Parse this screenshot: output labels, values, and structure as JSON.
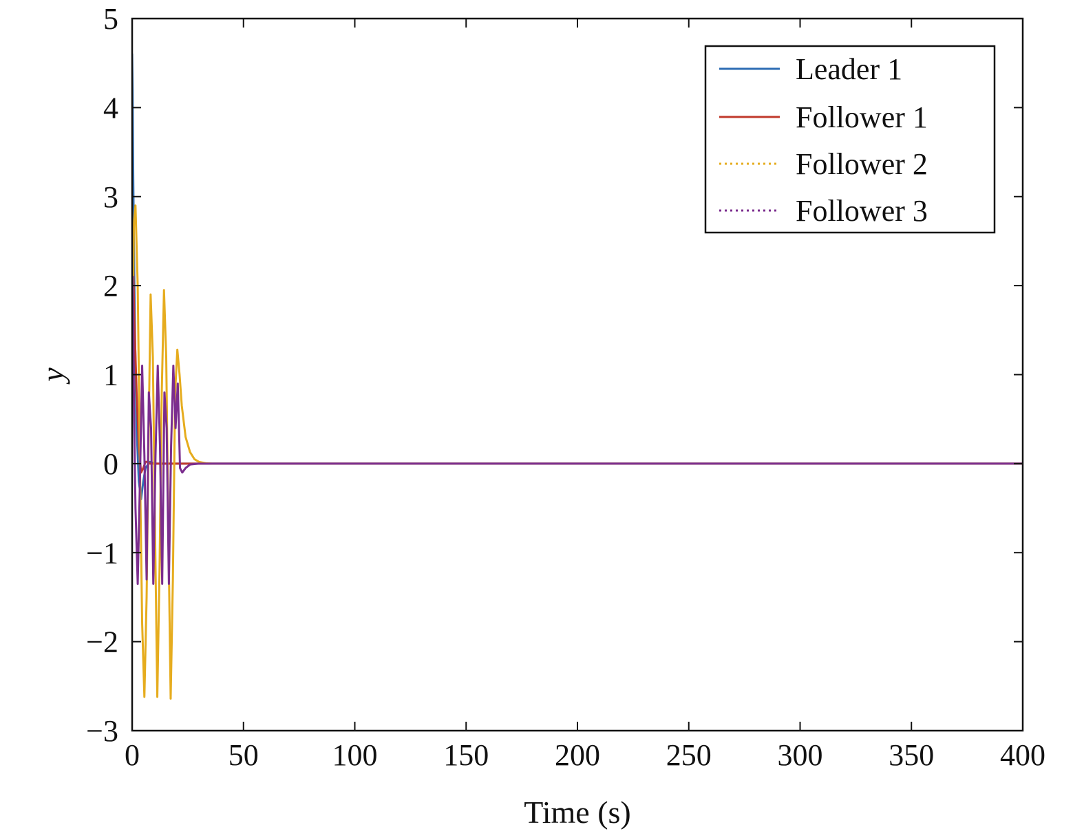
{
  "chart_data": {
    "type": "line",
    "title": "",
    "xlabel": "Time (s)",
    "ylabel": "y",
    "xlim": [
      0,
      400
    ],
    "ylim": [
      -3,
      5
    ],
    "xticks": [
      0,
      50,
      100,
      150,
      200,
      250,
      300,
      350,
      400
    ],
    "yticks": [
      -3,
      -2,
      -1,
      0,
      1,
      2,
      3,
      4,
      5
    ],
    "xtick_labels": [
      "0",
      "50",
      "100",
      "150",
      "200",
      "250",
      "300",
      "350",
      "400"
    ],
    "ytick_labels": [
      "−3",
      "−2",
      "−1",
      "0",
      "1",
      "2",
      "3",
      "4",
      "5"
    ],
    "grid": false,
    "legend_position": "top-right",
    "series": [
      {
        "name": "Leader 1",
        "color": "#2e6db4",
        "style": "solid",
        "x": [
          0,
          0.2,
          0.5,
          1,
          1.5,
          2,
          3,
          4,
          5,
          6,
          8,
          10,
          15,
          20,
          30,
          50,
          400
        ],
        "y": [
          4.6,
          4.2,
          3.2,
          2.0,
          1.1,
          0.4,
          -0.2,
          -0.4,
          -0.2,
          -0.05,
          0.02,
          0,
          0,
          0,
          0,
          0,
          0
        ]
      },
      {
        "name": "Follower 1",
        "color": "#c0392b",
        "style": "solid",
        "x": [
          0,
          0.5,
          1,
          2,
          3,
          4,
          5,
          6,
          7,
          8,
          10,
          14,
          20,
          30,
          50,
          400
        ],
        "y": [
          2.4,
          2.2,
          1.6,
          0.8,
          0.2,
          -0.1,
          -0.05,
          0.02,
          0.02,
          0,
          0,
          0,
          0,
          0,
          0,
          0
        ]
      },
      {
        "name": "Follower 2",
        "color": "#e6ac1e",
        "style": "dotted",
        "x": [
          0,
          0.8,
          1.5,
          2.5,
          3.5,
          4.5,
          5.5,
          6.5,
          7.5,
          8.3,
          9.3,
          10.3,
          11.3,
          12.3,
          13.3,
          14.3,
          15.3,
          16.3,
          17.3,
          18.3,
          19.3,
          20.3,
          21.3,
          22.3,
          24,
          26,
          28,
          30,
          33,
          36,
          40,
          400
        ],
        "y": [
          1.1,
          2.7,
          2.9,
          2.0,
          0,
          -1.8,
          -2.62,
          -1.5,
          0.5,
          1.9,
          1.2,
          -0.8,
          -2.62,
          -1.2,
          0.8,
          1.95,
          1.2,
          -0.8,
          -2.64,
          -1.3,
          0.8,
          1.28,
          1.0,
          0.65,
          0.3,
          0.13,
          0.05,
          0.02,
          0.005,
          0,
          0,
          0
        ]
      },
      {
        "name": "Follower 3",
        "color": "#7b2d8e",
        "style": "dotted",
        "x": [
          0,
          0.3,
          0.8,
          1.5,
          2.5,
          3.5,
          4.5,
          5.5,
          6.5,
          7.5,
          8.5,
          9.5,
          10.5,
          11.5,
          12.5,
          13.5,
          14.5,
          15.5,
          16.5,
          17.5,
          18.5,
          19.5,
          20.5,
          21.5,
          22.5,
          24,
          26,
          30,
          400
        ],
        "y": [
          1.0,
          2.1,
          0.7,
          -0.5,
          -1.35,
          -0.2,
          1.1,
          0.1,
          -1.3,
          0.8,
          0.4,
          -1.35,
          0.1,
          1.1,
          0.2,
          -1.35,
          0.8,
          0.4,
          -1.35,
          0.2,
          1.1,
          0.4,
          0.9,
          -0.05,
          -0.1,
          -0.05,
          -0.01,
          0,
          0
        ]
      }
    ]
  }
}
